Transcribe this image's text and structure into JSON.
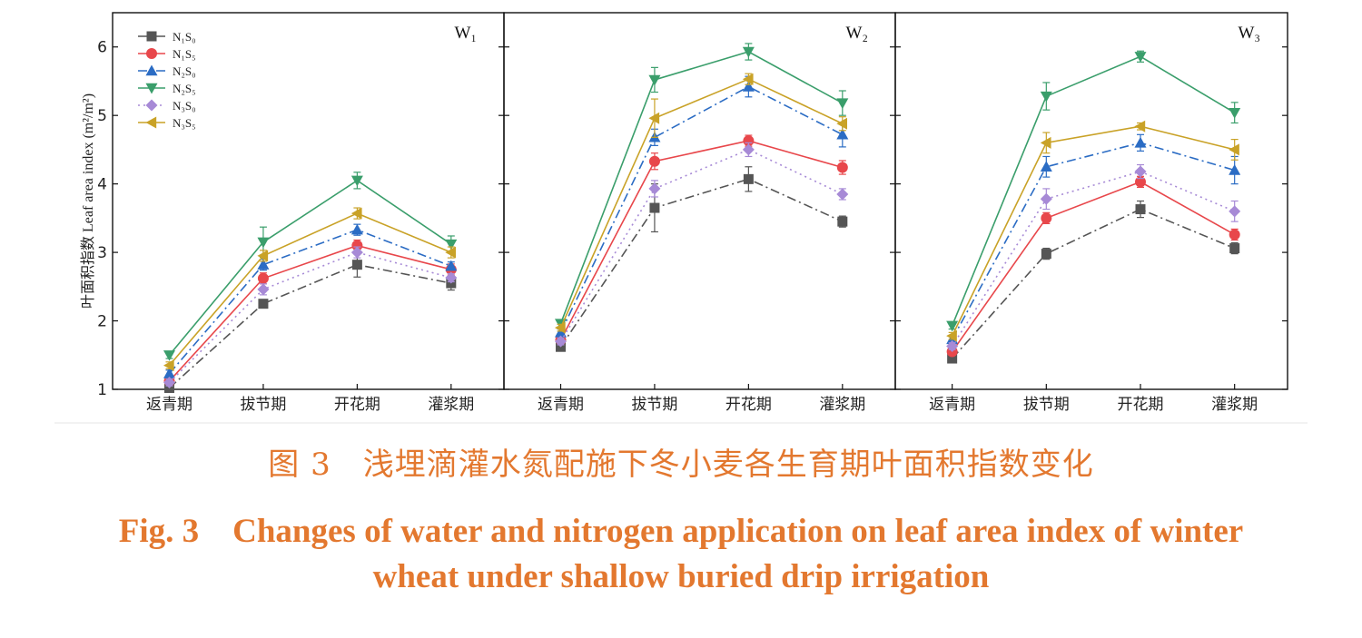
{
  "chart_data": {
    "type": "line",
    "ylabel": "叶面积指数 Leaf area index (m²/m²)",
    "ylim": [
      1,
      6.5
    ],
    "yticks": [
      1,
      2,
      3,
      4,
      5,
      6
    ],
    "categories": [
      "返青期",
      "拔节期",
      "开花期",
      "灌浆期"
    ],
    "panels": [
      {
        "label": "W₁",
        "series": [
          {
            "name": "N₁S₀",
            "color": "#555555",
            "marker": "square",
            "dash": "dashdot",
            "values": [
              1.02,
              2.25,
              2.82,
              2.55
            ],
            "errors": [
              0.04,
              0.05,
              0.18,
              0.1
            ]
          },
          {
            "name": "N₁S₅",
            "color": "#e8474b",
            "marker": "circle",
            "dash": "solid",
            "values": [
              1.12,
              2.62,
              3.1,
              2.75
            ],
            "errors": [
              0.05,
              0.08,
              0.08,
              0.08
            ]
          },
          {
            "name": "N₂S₀",
            "color": "#2b6cc4",
            "marker": "triangle-up",
            "dash": "dashdot",
            "values": [
              1.23,
              2.82,
              3.33,
              2.8
            ],
            "errors": [
              0.05,
              0.08,
              0.08,
              0.06
            ]
          },
          {
            "name": "N₂S₅",
            "color": "#3a9e6b",
            "marker": "triangle-down",
            "dash": "solid",
            "values": [
              1.5,
              3.15,
              4.05,
              3.12
            ],
            "errors": [
              0.05,
              0.22,
              0.12,
              0.12
            ]
          },
          {
            "name": "N₃S₀",
            "color": "#a78ad6",
            "marker": "diamond",
            "dash": "dotted",
            "values": [
              1.1,
              2.46,
              3.0,
              2.63
            ],
            "errors": [
              0.05,
              0.08,
              0.08,
              0.06
            ]
          },
          {
            "name": "N₃S₅",
            "color": "#c9a227",
            "marker": "triangle-left",
            "dash": "solid",
            "values": [
              1.35,
              2.95,
              3.57,
              3.0
            ],
            "errors": [
              0.05,
              0.08,
              0.08,
              0.08
            ]
          }
        ]
      },
      {
        "label": "W₂",
        "series": [
          {
            "name": "N₁S₀",
            "color": "#555555",
            "marker": "square",
            "dash": "dashdot",
            "values": [
              1.62,
              3.65,
              4.07,
              3.45
            ],
            "errors": [
              0.04,
              0.35,
              0.18,
              0.08
            ]
          },
          {
            "name": "N₁S₅",
            "color": "#e8474b",
            "marker": "circle",
            "dash": "solid",
            "values": [
              1.72,
              4.33,
              4.63,
              4.24
            ],
            "errors": [
              0.05,
              0.12,
              0.08,
              0.1
            ]
          },
          {
            "name": "N₂S₀",
            "color": "#2b6cc4",
            "marker": "triangle-up",
            "dash": "dashdot",
            "values": [
              1.83,
              4.68,
              5.42,
              4.72
            ],
            "errors": [
              0.05,
              0.12,
              0.15,
              0.18
            ]
          },
          {
            "name": "N₂S₅",
            "color": "#3a9e6b",
            "marker": "triangle-down",
            "dash": "solid",
            "values": [
              1.96,
              5.52,
              5.93,
              5.18
            ],
            "errors": [
              0.05,
              0.18,
              0.12,
              0.18
            ]
          },
          {
            "name": "N₃S₀",
            "color": "#a78ad6",
            "marker": "diamond",
            "dash": "dotted",
            "values": [
              1.7,
              3.93,
              4.5,
              3.85
            ],
            "errors": [
              0.05,
              0.12,
              0.1,
              0.08
            ]
          },
          {
            "name": "N₃S₅",
            "color": "#c9a227",
            "marker": "triangle-left",
            "dash": "solid",
            "values": [
              1.9,
              4.96,
              5.53,
              4.88
            ],
            "errors": [
              0.05,
              0.28,
              0.08,
              0.1
            ]
          }
        ]
      },
      {
        "label": "W₃",
        "series": [
          {
            "name": "N₁S₀",
            "color": "#555555",
            "marker": "square",
            "dash": "dashdot",
            "values": [
              1.45,
              2.98,
              3.63,
              3.06
            ],
            "errors": [
              0.04,
              0.08,
              0.12,
              0.08
            ]
          },
          {
            "name": "N₁S₅",
            "color": "#e8474b",
            "marker": "circle",
            "dash": "solid",
            "values": [
              1.55,
              3.5,
              4.03,
              3.26
            ],
            "errors": [
              0.05,
              0.08,
              0.08,
              0.08
            ]
          },
          {
            "name": "N₂S₀",
            "color": "#2b6cc4",
            "marker": "triangle-up",
            "dash": "dashdot",
            "values": [
              1.73,
              4.25,
              4.6,
              4.2
            ],
            "errors": [
              0.05,
              0.15,
              0.12,
              0.2
            ]
          },
          {
            "name": "N₂S₅",
            "color": "#3a9e6b",
            "marker": "triangle-down",
            "dash": "solid",
            "values": [
              1.93,
              5.28,
              5.86,
              5.04
            ],
            "errors": [
              0.05,
              0.2,
              0.08,
              0.15
            ]
          },
          {
            "name": "N₃S₀",
            "color": "#a78ad6",
            "marker": "diamond",
            "dash": "dotted",
            "values": [
              1.63,
              3.78,
              4.18,
              3.6
            ],
            "errors": [
              0.05,
              0.15,
              0.1,
              0.15
            ]
          },
          {
            "name": "N₃S₅",
            "color": "#c9a227",
            "marker": "triangle-left",
            "dash": "solid",
            "values": [
              1.78,
              4.6,
              4.84,
              4.5
            ],
            "errors": [
              0.05,
              0.15,
              0.05,
              0.15
            ]
          }
        ]
      }
    ]
  },
  "caption": {
    "cn": "图 3　浅埋滴灌水氮配施下冬小麦各生育期叶面积指数变化",
    "en_line1": "Fig. 3　Changes of water and nitrogen application on leaf area index of winter",
    "en_line2": "wheat under shallow buried drip irrigation"
  }
}
